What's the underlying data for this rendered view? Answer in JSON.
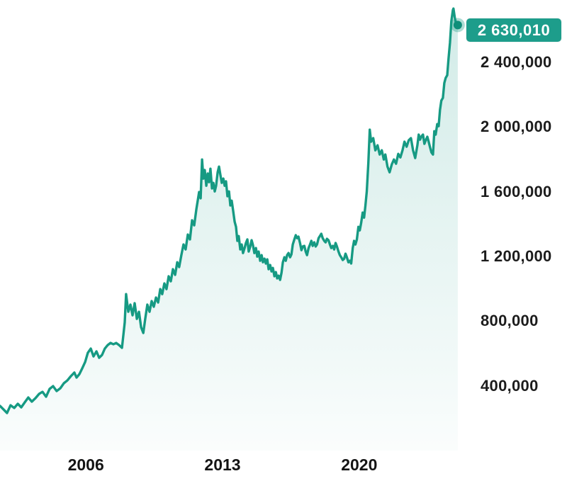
{
  "chart": {
    "type": "area",
    "current_value": {
      "label": "2 630,010",
      "value": 2630010
    },
    "colors": {
      "line": "#169A83",
      "badge_background": "#1D9D8B",
      "badge_text": "#FFFFFF",
      "marker_dot": "#0F8E79",
      "marker_halo": "#169A83",
      "fill_color": "#189A87",
      "fill_top_alpha": 0.2,
      "fill_mid_alpha": 0.05,
      "fill_bottom_alpha": 0.02,
      "axis_text": "#1C1C1C"
    },
    "chart_data": {
      "type": "area",
      "title": "",
      "xlabel": "",
      "ylabel": "",
      "legend": "none",
      "grid": "off",
      "xlim": [
        2001.6,
        2025.2
      ],
      "ylim": [
        0,
        2785000
      ],
      "y_axis": {
        "side": "right",
        "ticks": [
          {
            "value": 2400000,
            "label": "2 400,000"
          },
          {
            "value": 2000000,
            "label": "2 000,000"
          },
          {
            "value": 1600000,
            "label": "1 600,000"
          },
          {
            "value": 1200000,
            "label": "1 200,000"
          },
          {
            "value": 800000,
            "label": "800,000"
          },
          {
            "value": 400000,
            "label": "400,000"
          }
        ]
      },
      "x_axis": {
        "ticks": [
          {
            "value": 2006,
            "label": "2006"
          },
          {
            "value": 2013,
            "label": "2013"
          },
          {
            "value": 2020,
            "label": "2020"
          }
        ]
      },
      "series": [
        {
          "points": [
            [
              2001.6,
              276000
            ],
            [
              2001.78,
              254000
            ],
            [
              2001.96,
              232000
            ],
            [
              2002.14,
              280000
            ],
            [
              2002.33,
              263000
            ],
            [
              2002.51,
              289000
            ],
            [
              2002.69,
              267000
            ],
            [
              2002.87,
              298000
            ],
            [
              2003.05,
              328000
            ],
            [
              2003.23,
              302000
            ],
            [
              2003.42,
              324000
            ],
            [
              2003.6,
              350000
            ],
            [
              2003.78,
              363000
            ],
            [
              2003.96,
              333000
            ],
            [
              2004.14,
              381000
            ],
            [
              2004.32,
              398000
            ],
            [
              2004.5,
              368000
            ],
            [
              2004.69,
              385000
            ],
            [
              2004.87,
              416000
            ],
            [
              2005.05,
              433000
            ],
            [
              2005.23,
              460000
            ],
            [
              2005.41,
              482000
            ],
            [
              2005.52,
              451000
            ],
            [
              2005.67,
              473000
            ],
            [
              2005.81,
              508000
            ],
            [
              2005.96,
              547000
            ],
            [
              2006.1,
              604000
            ],
            [
              2006.25,
              630000
            ],
            [
              2006.39,
              582000
            ],
            [
              2006.54,
              613000
            ],
            [
              2006.68,
              573000
            ],
            [
              2006.83,
              591000
            ],
            [
              2006.97,
              630000
            ],
            [
              2007.12,
              652000
            ],
            [
              2007.26,
              665000
            ],
            [
              2007.41,
              657000
            ],
            [
              2007.55,
              665000
            ],
            [
              2007.7,
              652000
            ],
            [
              2007.85,
              635000
            ],
            [
              2007.99,
              792000
            ],
            [
              2008.06,
              967000
            ],
            [
              2008.17,
              858000
            ],
            [
              2008.28,
              902000
            ],
            [
              2008.39,
              836000
            ],
            [
              2008.5,
              911000
            ],
            [
              2008.61,
              814000
            ],
            [
              2008.72,
              858000
            ],
            [
              2008.83,
              762000
            ],
            [
              2008.94,
              727000
            ],
            [
              2009.04,
              814000
            ],
            [
              2009.15,
              902000
            ],
            [
              2009.26,
              858000
            ],
            [
              2009.37,
              924000
            ],
            [
              2009.48,
              889000
            ],
            [
              2009.59,
              946000
            ],
            [
              2009.7,
              915000
            ],
            [
              2009.81,
              998000
            ],
            [
              2009.91,
              967000
            ],
            [
              2010.02,
              1033000
            ],
            [
              2010.13,
              998000
            ],
            [
              2010.24,
              1077000
            ],
            [
              2010.35,
              1046000
            ],
            [
              2010.46,
              1121000
            ],
            [
              2010.57,
              1086000
            ],
            [
              2010.68,
              1164000
            ],
            [
              2010.78,
              1134000
            ],
            [
              2010.89,
              1208000
            ],
            [
              2011.0,
              1274000
            ],
            [
              2011.11,
              1243000
            ],
            [
              2011.22,
              1335000
            ],
            [
              2011.33,
              1305000
            ],
            [
              2011.44,
              1423000
            ],
            [
              2011.55,
              1392000
            ],
            [
              2011.66,
              1493000
            ],
            [
              2011.73,
              1545000
            ],
            [
              2011.8,
              1598000
            ],
            [
              2011.88,
              1559000
            ],
            [
              2011.95,
              1799000
            ],
            [
              2012.02,
              1681000
            ],
            [
              2012.09,
              1734000
            ],
            [
              2012.17,
              1637000
            ],
            [
              2012.24,
              1712000
            ],
            [
              2012.31,
              1659000
            ],
            [
              2012.38,
              1742000
            ],
            [
              2012.46,
              1620000
            ],
            [
              2012.53,
              1655000
            ],
            [
              2012.6,
              1602000
            ],
            [
              2012.67,
              1637000
            ],
            [
              2012.75,
              1720000
            ],
            [
              2012.82,
              1755000
            ],
            [
              2012.89,
              1703000
            ],
            [
              2012.96,
              1655000
            ],
            [
              2013.04,
              1681000
            ],
            [
              2013.11,
              1637000
            ],
            [
              2013.18,
              1664000
            ],
            [
              2013.25,
              1572000
            ],
            [
              2013.33,
              1602000
            ],
            [
              2013.4,
              1515000
            ],
            [
              2013.47,
              1545000
            ],
            [
              2013.54,
              1484000
            ],
            [
              2013.62,
              1414000
            ],
            [
              2013.69,
              1383000
            ],
            [
              2013.76,
              1296000
            ],
            [
              2013.83,
              1326000
            ],
            [
              2013.91,
              1243000
            ],
            [
              2013.98,
              1274000
            ],
            [
              2014.05,
              1221000
            ],
            [
              2014.13,
              1252000
            ],
            [
              2014.2,
              1283000
            ],
            [
              2014.27,
              1305000
            ],
            [
              2014.34,
              1230000
            ],
            [
              2014.42,
              1261000
            ],
            [
              2014.49,
              1300000
            ],
            [
              2014.56,
              1270000
            ],
            [
              2014.63,
              1221000
            ],
            [
              2014.71,
              1252000
            ],
            [
              2014.78,
              1199000
            ],
            [
              2014.85,
              1230000
            ],
            [
              2014.93,
              1173000
            ],
            [
              2015.0,
              1208000
            ],
            [
              2015.07,
              1164000
            ],
            [
              2015.15,
              1186000
            ],
            [
              2015.22,
              1156000
            ],
            [
              2015.29,
              1182000
            ],
            [
              2015.36,
              1121000
            ],
            [
              2015.44,
              1147000
            ],
            [
              2015.51,
              1107000
            ],
            [
              2015.58,
              1129000
            ],
            [
              2015.66,
              1077000
            ],
            [
              2015.73,
              1103000
            ],
            [
              2015.8,
              1064000
            ],
            [
              2015.87,
              1081000
            ],
            [
              2015.95,
              1055000
            ],
            [
              2016.02,
              1099000
            ],
            [
              2016.09,
              1164000
            ],
            [
              2016.17,
              1195000
            ],
            [
              2016.24,
              1173000
            ],
            [
              2016.31,
              1208000
            ],
            [
              2016.38,
              1221000
            ],
            [
              2016.46,
              1195000
            ],
            [
              2016.53,
              1213000
            ],
            [
              2016.6,
              1274000
            ],
            [
              2016.68,
              1305000
            ],
            [
              2016.75,
              1331000
            ],
            [
              2016.82,
              1313000
            ],
            [
              2016.89,
              1322000
            ],
            [
              2016.97,
              1283000
            ],
            [
              2017.04,
              1239000
            ],
            [
              2017.11,
              1261000
            ],
            [
              2017.19,
              1265000
            ],
            [
              2017.26,
              1230000
            ],
            [
              2017.33,
              1208000
            ],
            [
              2017.41,
              1252000
            ],
            [
              2017.48,
              1274000
            ],
            [
              2017.55,
              1296000
            ],
            [
              2017.62,
              1265000
            ],
            [
              2017.7,
              1287000
            ],
            [
              2017.77,
              1261000
            ],
            [
              2017.84,
              1274000
            ],
            [
              2017.92,
              1313000
            ],
            [
              2017.99,
              1326000
            ],
            [
              2018.06,
              1340000
            ],
            [
              2018.13,
              1313000
            ],
            [
              2018.21,
              1296000
            ],
            [
              2018.28,
              1287000
            ],
            [
              2018.35,
              1309000
            ],
            [
              2018.43,
              1300000
            ],
            [
              2018.5,
              1274000
            ],
            [
              2018.57,
              1252000
            ],
            [
              2018.65,
              1265000
            ],
            [
              2018.72,
              1243000
            ],
            [
              2018.79,
              1283000
            ],
            [
              2018.86,
              1261000
            ],
            [
              2018.94,
              1230000
            ],
            [
              2019.01,
              1208000
            ],
            [
              2019.08,
              1195000
            ],
            [
              2019.16,
              1178000
            ],
            [
              2019.23,
              1186000
            ],
            [
              2019.3,
              1217000
            ],
            [
              2019.37,
              1195000
            ],
            [
              2019.45,
              1164000
            ],
            [
              2019.52,
              1173000
            ],
            [
              2019.59,
              1156000
            ],
            [
              2019.67,
              1252000
            ],
            [
              2019.74,
              1296000
            ],
            [
              2019.81,
              1274000
            ],
            [
              2019.88,
              1305000
            ],
            [
              2019.96,
              1383000
            ],
            [
              2020.03,
              1361000
            ],
            [
              2020.1,
              1405000
            ],
            [
              2020.18,
              1471000
            ],
            [
              2020.25,
              1440000
            ],
            [
              2020.32,
              1515000
            ],
            [
              2020.39,
              1602000
            ],
            [
              2020.47,
              1777000
            ],
            [
              2020.54,
              1983000
            ],
            [
              2020.61,
              1909000
            ],
            [
              2020.72,
              1931000
            ],
            [
              2020.83,
              1856000
            ],
            [
              2020.94,
              1887000
            ],
            [
              2021.05,
              1830000
            ],
            [
              2021.16,
              1856000
            ],
            [
              2021.26,
              1799000
            ],
            [
              2021.34,
              1830000
            ],
            [
              2021.45,
              1755000
            ],
            [
              2021.56,
              1720000
            ],
            [
              2021.67,
              1769000
            ],
            [
              2021.78,
              1799000
            ],
            [
              2021.89,
              1773000
            ],
            [
              2022.0,
              1834000
            ],
            [
              2022.11,
              1812000
            ],
            [
              2022.22,
              1856000
            ],
            [
              2022.32,
              1909000
            ],
            [
              2022.43,
              1878000
            ],
            [
              2022.54,
              1918000
            ],
            [
              2022.65,
              1931000
            ],
            [
              2022.76,
              1856000
            ],
            [
              2022.87,
              1808000
            ],
            [
              2022.98,
              1887000
            ],
            [
              2023.05,
              1953000
            ],
            [
              2023.12,
              1922000
            ],
            [
              2023.2,
              1944000
            ],
            [
              2023.27,
              1953000
            ],
            [
              2023.34,
              1896000
            ],
            [
              2023.41,
              1918000
            ],
            [
              2023.49,
              1940000
            ],
            [
              2023.56,
              1909000
            ],
            [
              2023.63,
              1874000
            ],
            [
              2023.7,
              1843000
            ],
            [
              2023.78,
              1830000
            ],
            [
              2023.85,
              1974000
            ],
            [
              2023.92,
              1953000
            ],
            [
              2024.0,
              2018000
            ],
            [
              2024.07,
              2005000
            ],
            [
              2024.14,
              2106000
            ],
            [
              2024.21,
              2163000
            ],
            [
              2024.29,
              2180000
            ],
            [
              2024.36,
              2272000
            ],
            [
              2024.43,
              2303000
            ],
            [
              2024.51,
              2320000
            ],
            [
              2024.58,
              2425000
            ],
            [
              2024.65,
              2522000
            ],
            [
              2024.72,
              2653000
            ],
            [
              2024.8,
              2723000
            ],
            [
              2024.83,
              2732000
            ],
            [
              2024.9,
              2675000
            ],
            [
              2024.98,
              2631000
            ],
            [
              2025.05,
              2630010
            ]
          ]
        }
      ]
    }
  }
}
